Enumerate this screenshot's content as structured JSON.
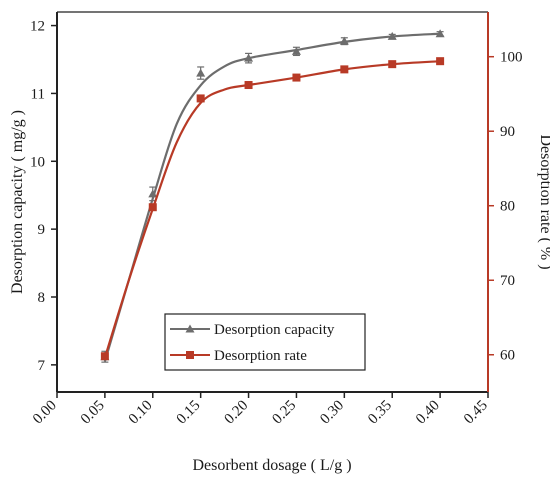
{
  "chart_data": {
    "type": "line",
    "x": [
      0.05,
      0.1,
      0.15,
      0.2,
      0.25,
      0.3,
      0.35,
      0.4
    ],
    "xlabel": "Desorbent dosage ( L/g )",
    "xlim": [
      0.0,
      0.45
    ],
    "xticks": [
      "0.00",
      "0.05",
      "0.10",
      "0.15",
      "0.20",
      "0.25",
      "0.30",
      "0.35",
      "0.40",
      "0.45"
    ],
    "xtick_values": [
      0.0,
      0.05,
      0.1,
      0.15,
      0.2,
      0.25,
      0.3,
      0.35,
      0.4,
      0.45
    ],
    "ylabel_left": "Desorption capacity ( mg/g )",
    "ylim_left": [
      6.6,
      12.2
    ],
    "yticks_left": [
      "7",
      "8",
      "9",
      "10",
      "11",
      "12"
    ],
    "ytick_values_left": [
      7,
      8,
      9,
      10,
      11,
      12
    ],
    "ylabel_right": "Desorption rate ( % )",
    "ylim_right": [
      55,
      106
    ],
    "yticks_right": [
      "60",
      "70",
      "80",
      "90",
      "100"
    ],
    "ytick_values_right": [
      60,
      70,
      80,
      90,
      100
    ],
    "grid": false,
    "legend_position": "bottom-center",
    "series": [
      {
        "name": "Desorption capacity",
        "axis": "left",
        "color": "#6d6d6d",
        "marker": "triangle",
        "values": [
          7.12,
          9.52,
          11.3,
          11.52,
          11.62,
          11.77,
          11.84,
          11.88
        ],
        "errors": [
          0.08,
          0.1,
          0.09,
          0.07,
          0.06,
          0.05,
          0.03,
          0.03
        ],
        "fit_curve": [
          [
            0.05,
            7.05
          ],
          [
            0.075,
            8.25
          ],
          [
            0.1,
            9.45
          ],
          [
            0.125,
            10.55
          ],
          [
            0.15,
            11.12
          ],
          [
            0.175,
            11.4
          ],
          [
            0.2,
            11.52
          ],
          [
            0.25,
            11.64
          ],
          [
            0.3,
            11.76
          ],
          [
            0.35,
            11.84
          ],
          [
            0.4,
            11.88
          ]
        ]
      },
      {
        "name": "Desorption rate",
        "axis": "right",
        "color": "#b83a26",
        "marker": "square",
        "values": [
          59.8,
          79.8,
          94.4,
          96.2,
          97.2,
          98.3,
          99.0,
          99.4
        ],
        "fit_curve": [
          [
            0.05,
            59.6
          ],
          [
            0.075,
            70.0
          ],
          [
            0.1,
            79.6
          ],
          [
            0.125,
            88.5
          ],
          [
            0.15,
            93.8
          ],
          [
            0.175,
            95.6
          ],
          [
            0.2,
            96.2
          ],
          [
            0.25,
            97.2
          ],
          [
            0.3,
            98.3
          ],
          [
            0.35,
            99.0
          ],
          [
            0.4,
            99.4
          ]
        ]
      }
    ]
  }
}
